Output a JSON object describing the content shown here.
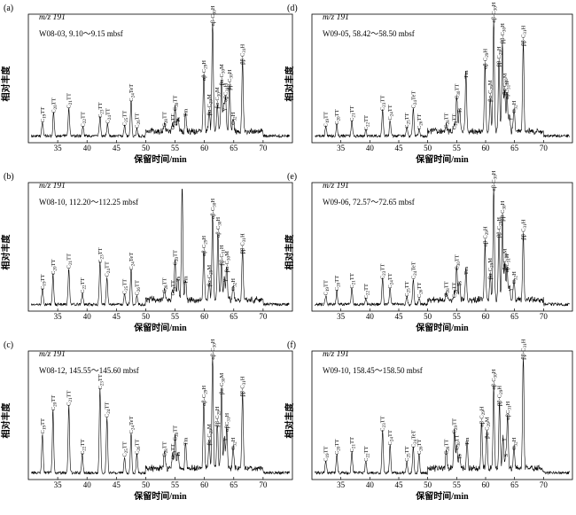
{
  "figure": {
    "ylabel": "相对丰度",
    "xlabel": "保留时间/min",
    "mz_label": "m/z 191",
    "axis_ticks": [
      35,
      40,
      45,
      50,
      55,
      60,
      65,
      70
    ],
    "xlim": [
      30,
      75
    ]
  },
  "chart_data": [
    {
      "type": "line",
      "panel_label": "(a)",
      "sample": "W08-03, 9.10～9.15 mbsf",
      "xlabel": "保留时间/min",
      "ylabel": "相对丰度",
      "xlim": [
        30,
        75
      ],
      "peaks": [
        {
          "x": 32.4,
          "h": 0.12,
          "label": "C19TT"
        },
        {
          "x": 34.3,
          "h": 0.2,
          "label": "C20TT"
        },
        {
          "x": 36.9,
          "h": 0.24,
          "label": "C21TT"
        },
        {
          "x": 39.3,
          "h": 0.08,
          "label": "C22TT"
        },
        {
          "x": 42.2,
          "h": 0.16,
          "label": "C23TT"
        },
        {
          "x": 43.5,
          "h": 0.11,
          "label": "C24TT"
        },
        {
          "x": 46.4,
          "h": 0.09,
          "label": "C25TT"
        },
        {
          "x": 47.5,
          "h": 0.3,
          "label": "C24TeT"
        },
        {
          "x": 48.5,
          "h": 0.07,
          "label": "C26TT"
        },
        {
          "x": 53.2,
          "h": 0.08,
          "label": "C28TT"
        },
        {
          "x": 54.6,
          "h": 0.06,
          "label": "C29TT"
        },
        {
          "x": 55.0,
          "h": 0.22,
          "label": "C30TT"
        },
        {
          "x": 55.5,
          "h": 0.12,
          "label": "Ts"
        },
        {
          "x": 56.8,
          "h": 0.17,
          "label": "Tm"
        },
        {
          "x": 59.9,
          "h": 0.48,
          "label": "αβ-C29H"
        },
        {
          "x": 60.8,
          "h": 0.18,
          "label": "βα-C29M"
        },
        {
          "x": 61.4,
          "h": 0.95,
          "label": "αβ-C30H"
        },
        {
          "x": 62.2,
          "h": 0.24,
          "label": "βα-C30M"
        },
        {
          "x": 62.9,
          "h": 0.44,
          "label": "βα-C30M"
        },
        {
          "x": 63.3,
          "h": 0.22,
          "label": "γ"
        },
        {
          "x": 63.6,
          "h": 0.3,
          "label": "αβC31H"
        },
        {
          "x": 64.3,
          "h": 0.4,
          "label": "ββ-C30H"
        },
        {
          "x": 64.9,
          "h": 0.1,
          "label": "C32H"
        },
        {
          "x": 66.5,
          "h": 0.62,
          "label": "ββ-C31H"
        }
      ]
    },
    {
      "type": "line",
      "panel_label": "(b)",
      "sample": "W08-10, 112.20～112.25 mbsf",
      "xlabel": "保留时间/min",
      "ylabel": "相对丰度",
      "xlim": [
        30,
        75
      ],
      "peaks": [
        {
          "x": 32.4,
          "h": 0.13,
          "label": "C19TT"
        },
        {
          "x": 34.2,
          "h": 0.26,
          "label": "C20TT"
        },
        {
          "x": 36.9,
          "h": 0.31,
          "label": "C21TT"
        },
        {
          "x": 39.2,
          "h": 0.1,
          "label": "C22TT"
        },
        {
          "x": 42.2,
          "h": 0.36,
          "label": "C23TT"
        },
        {
          "x": 43.4,
          "h": 0.24,
          "label": "C24TT"
        },
        {
          "x": 46.4,
          "h": 0.09,
          "label": "C25TT"
        },
        {
          "x": 47.5,
          "h": 0.3,
          "label": "C24TeT"
        },
        {
          "x": 48.5,
          "h": 0.08,
          "label": "C26TT"
        },
        {
          "x": 53.2,
          "h": 0.1,
          "label": "C28TT"
        },
        {
          "x": 54.6,
          "h": 0.08,
          "label": "C29TT"
        },
        {
          "x": 55.0,
          "h": 0.34,
          "label": "C30TT"
        },
        {
          "x": 55.5,
          "h": 0.2,
          "label": "Ts"
        },
        {
          "x": 56.8,
          "h": 0.18,
          "label": "Tm"
        },
        {
          "x": 56.2,
          "h": 0.98,
          "label": ""
        },
        {
          "x": 59.9,
          "h": 0.42,
          "label": "αβ-C29H"
        },
        {
          "x": 60.8,
          "h": 0.16,
          "label": "βα-C29M"
        },
        {
          "x": 61.4,
          "h": 0.74,
          "label": "αβ-C30H"
        },
        {
          "x": 62.3,
          "h": 0.58,
          "label": "αβ-C30H"
        },
        {
          "x": 62.9,
          "h": 0.34,
          "label": "ββ-C31H"
        },
        {
          "x": 63.4,
          "h": 0.2,
          "label": "γ"
        },
        {
          "x": 63.8,
          "h": 0.28,
          "label": "βα-C30M"
        },
        {
          "x": 64.9,
          "h": 0.12,
          "label": "C32H"
        },
        {
          "x": 66.5,
          "h": 0.44,
          "label": "ββ-C31H"
        }
      ]
    },
    {
      "type": "line",
      "panel_label": "(c)",
      "sample": "W08-12, 145.55～145.60 mbsf",
      "xlabel": "保留时间/min",
      "ylabel": "相对丰度",
      "xlim": [
        30,
        75
      ],
      "peaks": [
        {
          "x": 32.4,
          "h": 0.34,
          "label": "C19TT"
        },
        {
          "x": 34.2,
          "h": 0.54,
          "label": "C20TT"
        },
        {
          "x": 36.9,
          "h": 0.58,
          "label": "C21TT"
        },
        {
          "x": 39.2,
          "h": 0.16,
          "label": "C22TT"
        },
        {
          "x": 42.2,
          "h": 0.72,
          "label": "C23TT"
        },
        {
          "x": 43.4,
          "h": 0.48,
          "label": "C24TT"
        },
        {
          "x": 46.4,
          "h": 0.14,
          "label": "C25TT"
        },
        {
          "x": 47.5,
          "h": 0.34,
          "label": "C24TeT"
        },
        {
          "x": 48.5,
          "h": 0.16,
          "label": "C26TT"
        },
        {
          "x": 53.2,
          "h": 0.14,
          "label": "C28TT"
        },
        {
          "x": 54.6,
          "h": 0.12,
          "label": "C29TT"
        },
        {
          "x": 55.0,
          "h": 0.28,
          "label": "C30TT"
        },
        {
          "x": 55.5,
          "h": 0.14,
          "label": "Ts"
        },
        {
          "x": 56.8,
          "h": 0.24,
          "label": "Tm"
        },
        {
          "x": 59.9,
          "h": 0.58,
          "label": "αβ-C29H"
        },
        {
          "x": 60.8,
          "h": 0.24,
          "label": "βα-C29M"
        },
        {
          "x": 61.4,
          "h": 0.98,
          "label": "αβ-C30H"
        },
        {
          "x": 62.2,
          "h": 0.4,
          "label": "ββ-C29H"
        },
        {
          "x": 62.9,
          "h": 0.68,
          "label": "βα-C30M"
        },
        {
          "x": 63.4,
          "h": 0.28,
          "label": "γ"
        },
        {
          "x": 63.8,
          "h": 0.36,
          "label": "αβC31H"
        },
        {
          "x": 64.9,
          "h": 0.2,
          "label": "C32H"
        },
        {
          "x": 66.5,
          "h": 0.66,
          "label": "ββ-C31H"
        }
      ]
    },
    {
      "type": "line",
      "panel_label": "(d)",
      "sample": "W09-05, 58.42～58.50 mbsf",
      "xlabel": "保留时间/min",
      "ylabel": "相对丰度",
      "xlim": [
        30,
        75
      ],
      "peaks": [
        {
          "x": 32.4,
          "h": 0.08,
          "label": "C19TT"
        },
        {
          "x": 34.3,
          "h": 0.1,
          "label": "C20TT"
        },
        {
          "x": 36.9,
          "h": 0.13,
          "label": "C21TT"
        },
        {
          "x": 39.3,
          "h": 0.05,
          "label": "C22TT"
        },
        {
          "x": 42.2,
          "h": 0.22,
          "label": "C23TT"
        },
        {
          "x": 43.5,
          "h": 0.14,
          "label": "C24TT"
        },
        {
          "x": 46.4,
          "h": 0.07,
          "label": "C25TT"
        },
        {
          "x": 47.5,
          "h": 0.24,
          "label": "C24TeT"
        },
        {
          "x": 48.5,
          "h": 0.06,
          "label": "C26TT"
        },
        {
          "x": 53.2,
          "h": 0.07,
          "label": "C28TT"
        },
        {
          "x": 54.6,
          "h": 0.06,
          "label": "C29TT"
        },
        {
          "x": 55.0,
          "h": 0.32,
          "label": "C30TT"
        },
        {
          "x": 55.5,
          "h": 0.2,
          "label": "Ts"
        },
        {
          "x": 56.6,
          "h": 0.5,
          "label": "Tm"
        },
        {
          "x": 59.9,
          "h": 0.58,
          "label": "αβ-C29H"
        },
        {
          "x": 60.8,
          "h": 0.3,
          "label": "βα-C29M"
        },
        {
          "x": 61.4,
          "h": 0.98,
          "label": "αβ-C30H"
        },
        {
          "x": 62.3,
          "h": 0.6,
          "label": "ββ-C29H"
        },
        {
          "x": 62.9,
          "h": 0.8,
          "label": "ββ-C30H"
        },
        {
          "x": 63.3,
          "h": 0.36,
          "label": "βα-C30M"
        },
        {
          "x": 63.7,
          "h": 0.32,
          "label": "αβC31H"
        },
        {
          "x": 64.1,
          "h": 0.14,
          "label": "γ"
        },
        {
          "x": 64.9,
          "h": 0.2,
          "label": "C32H"
        },
        {
          "x": 66.5,
          "h": 0.78,
          "label": "ββ-C31H"
        }
      ]
    },
    {
      "type": "line",
      "panel_label": "(e)",
      "sample": "W09-06, 72.57～72.65 mbsf",
      "xlabel": "保留时间/min",
      "ylabel": "相对丰度",
      "xlim": [
        30,
        75
      ],
      "peaks": [
        {
          "x": 32.4,
          "h": 0.08,
          "label": "C19TT"
        },
        {
          "x": 34.3,
          "h": 0.12,
          "label": "C20TT"
        },
        {
          "x": 36.9,
          "h": 0.14,
          "label": "C21TT"
        },
        {
          "x": 39.3,
          "h": 0.05,
          "label": "C22TT"
        },
        {
          "x": 42.2,
          "h": 0.22,
          "label": "C23TT"
        },
        {
          "x": 43.5,
          "h": 0.14,
          "label": "C24TT"
        },
        {
          "x": 46.4,
          "h": 0.07,
          "label": "C25TT"
        },
        {
          "x": 47.5,
          "h": 0.22,
          "label": "C24TeT"
        },
        {
          "x": 48.5,
          "h": 0.06,
          "label": "C26TT"
        },
        {
          "x": 53.2,
          "h": 0.07,
          "label": "C28TT"
        },
        {
          "x": 54.6,
          "h": 0.06,
          "label": "C29TT"
        },
        {
          "x": 55.0,
          "h": 0.3,
          "label": "C30TT"
        },
        {
          "x": 55.5,
          "h": 0.16,
          "label": "Ts"
        },
        {
          "x": 56.6,
          "h": 0.26,
          "label": "Tm"
        },
        {
          "x": 59.9,
          "h": 0.5,
          "label": "αβ-C29H"
        },
        {
          "x": 60.8,
          "h": 0.22,
          "label": "βα-C29M"
        },
        {
          "x": 61.4,
          "h": 0.98,
          "label": "αβ-C30H"
        },
        {
          "x": 62.3,
          "h": 0.58,
          "label": "ββ-C29H"
        },
        {
          "x": 62.9,
          "h": 0.72,
          "label": "ββ-C30H"
        },
        {
          "x": 63.3,
          "h": 0.3,
          "label": "βα-C30M"
        },
        {
          "x": 63.7,
          "h": 0.28,
          "label": "αβC31H"
        },
        {
          "x": 64.1,
          "h": 0.12,
          "label": "γ"
        },
        {
          "x": 64.9,
          "h": 0.18,
          "label": "C32H"
        },
        {
          "x": 66.5,
          "h": 0.56,
          "label": "ββ-C31H"
        }
      ]
    },
    {
      "type": "line",
      "panel_label": "(f)",
      "sample": "W09-10, 158.45～158.50 mbsf",
      "xlabel": "保留时间/min",
      "ylabel": "相对丰度",
      "xlim": [
        30,
        75
      ],
      "peaks": [
        {
          "x": 32.4,
          "h": 0.1,
          "label": "C19TT"
        },
        {
          "x": 34.3,
          "h": 0.16,
          "label": "C20TT"
        },
        {
          "x": 36.9,
          "h": 0.18,
          "label": "C21TT"
        },
        {
          "x": 39.3,
          "h": 0.1,
          "label": "C22TT"
        },
        {
          "x": 42.2,
          "h": 0.36,
          "label": "C23TT"
        },
        {
          "x": 43.5,
          "h": 0.24,
          "label": "C24TT"
        },
        {
          "x": 46.4,
          "h": 0.1,
          "label": "C25TT"
        },
        {
          "x": 47.5,
          "h": 0.22,
          "label": "C24TeT"
        },
        {
          "x": 48.5,
          "h": 0.16,
          "label": "C26TT"
        },
        {
          "x": 53.2,
          "h": 0.16,
          "label": "C28TT"
        },
        {
          "x": 54.6,
          "h": 0.34,
          "label": "C29TT"
        },
        {
          "x": 55.0,
          "h": 0.2,
          "label": "C30TT"
        },
        {
          "x": 55.5,
          "h": 0.12,
          "label": "Ts"
        },
        {
          "x": 56.8,
          "h": 0.24,
          "label": "Tm"
        },
        {
          "x": 59.3,
          "h": 0.4,
          "label": "αβ-C29H"
        },
        {
          "x": 60.2,
          "h": 0.3,
          "label": "βα-C29M"
        },
        {
          "x": 61.4,
          "h": 0.72,
          "label": "αβ-C30H"
        },
        {
          "x": 62.4,
          "h": 0.58,
          "label": "ββ-C29H"
        },
        {
          "x": 63.0,
          "h": 0.28,
          "label": "γ"
        },
        {
          "x": 63.5,
          "h": 0.14,
          "label": "S"
        },
        {
          "x": 63.8,
          "h": 0.46,
          "label": "αβC31H"
        },
        {
          "x": 64.9,
          "h": 0.2,
          "label": "C32H"
        },
        {
          "x": 66.5,
          "h": 0.98,
          "label": "ββ-C31H"
        }
      ]
    }
  ]
}
